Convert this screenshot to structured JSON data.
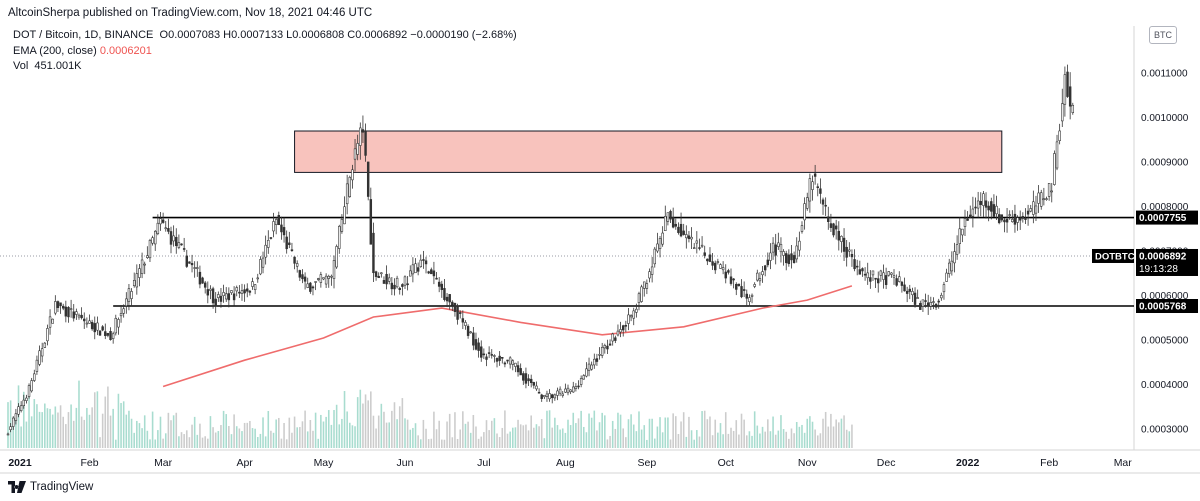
{
  "header": {
    "published": "AltcoinSherpa published on TradingView.com, Nov 18, 2021 04:46 UTC"
  },
  "legend": {
    "symbol": "DOT / Bitcoin, 1D, BINANCE",
    "ohlc": "O0.0007083 H0.0007133 L0.0006808 C0.0006892 −0.0000190 (−2.68%)",
    "ema_label": "EMA (200, close)",
    "ema_value": "0.0006201",
    "vol_label": "Vol",
    "vol_value": "451.001K"
  },
  "scale": {
    "unit": "BTC"
  },
  "price_labels": {
    "resistance": "0.0007755",
    "support": "0.0005768",
    "symbol_tag": "DOTBTC",
    "last_price": "0.0006892",
    "countdown": "19:13:28"
  },
  "footer": {
    "brand": "TradingView"
  },
  "colors": {
    "candle": "#333333",
    "ema": "#ef6c6c",
    "zone_fill": "#f8c3bd",
    "vol_up": "#a8dccf",
    "vol_down": "#cccccc"
  },
  "chart_data": {
    "type": "candlestick",
    "title": "",
    "symbol": "DOT / Bitcoin, 1D, BINANCE",
    "x_ticks": [
      "2021",
      "Feb",
      "Mar",
      "Apr",
      "May",
      "Jun",
      "Jul",
      "Aug",
      "Sep",
      "Oct",
      "Nov",
      "Dec",
      "2022",
      "Feb",
      "Mar"
    ],
    "y_ticks": [
      "0.0003000",
      "0.0004000",
      "0.0005000",
      "0.0006000",
      "0.0007000",
      "0.0008000",
      "0.0009000",
      "0.0010000",
      "0.0011000"
    ],
    "ylim": [
      0.00026,
      0.00117
    ],
    "price_path": [
      {
        "date": "2021-01-01",
        "price": 0.000285
      },
      {
        "date": "2021-01-10",
        "price": 0.00039
      },
      {
        "date": "2021-01-20",
        "price": 0.00058
      },
      {
        "date": "2021-02-01",
        "price": 0.00054
      },
      {
        "date": "2021-02-10",
        "price": 0.00051
      },
      {
        "date": "2021-02-20",
        "price": 0.00064
      },
      {
        "date": "2021-03-01",
        "price": 0.000765
      },
      {
        "date": "2021-03-10",
        "price": 0.00069
      },
      {
        "date": "2021-03-22",
        "price": 0.00059
      },
      {
        "date": "2021-04-05",
        "price": 0.00062
      },
      {
        "date": "2021-04-14",
        "price": 0.00077
      },
      {
        "date": "2021-04-25",
        "price": 0.00062
      },
      {
        "date": "2021-05-05",
        "price": 0.00064
      },
      {
        "date": "2021-05-13",
        "price": 0.0009
      },
      {
        "date": "2021-05-17",
        "price": 0.00098
      },
      {
        "date": "2021-05-21",
        "price": 0.00065
      },
      {
        "date": "2021-06-01",
        "price": 0.00062
      },
      {
        "date": "2021-06-08",
        "price": 0.00068
      },
      {
        "date": "2021-06-20",
        "price": 0.00058
      },
      {
        "date": "2021-07-01",
        "price": 0.00047
      },
      {
        "date": "2021-07-12",
        "price": 0.00045
      },
      {
        "date": "2021-07-25",
        "price": 0.00037
      },
      {
        "date": "2021-08-05",
        "price": 0.00039
      },
      {
        "date": "2021-08-15",
        "price": 0.00047
      },
      {
        "date": "2021-08-28",
        "price": 0.00056
      },
      {
        "date": "2021-09-05",
        "price": 0.00069
      },
      {
        "date": "2021-09-10",
        "price": 0.00078
      },
      {
        "date": "2021-09-18",
        "price": 0.00072
      },
      {
        "date": "2021-10-01",
        "price": 0.00066
      },
      {
        "date": "2021-10-10",
        "price": 0.00059
      },
      {
        "date": "2021-10-20",
        "price": 0.00071
      },
      {
        "date": "2021-10-28",
        "price": 0.00068
      },
      {
        "date": "2021-11-04",
        "price": 0.00087
      },
      {
        "date": "2021-11-10",
        "price": 0.00077
      },
      {
        "date": "2021-11-18",
        "price": 0.000689
      },
      {
        "date": "2021-11-25",
        "price": 0.00064
      },
      {
        "date": "2021-12-05",
        "price": 0.00064
      },
      {
        "date": "2021-12-15",
        "price": 0.00058
      },
      {
        "date": "2021-12-22",
        "price": 0.00059
      },
      {
        "date": "2022-01-01",
        "price": 0.00077
      },
      {
        "date": "2022-01-08",
        "price": 0.00082
      },
      {
        "date": "2022-01-15",
        "price": 0.00077
      },
      {
        "date": "2022-01-25",
        "price": 0.00078
      },
      {
        "date": "2022-02-03",
        "price": 0.00085
      },
      {
        "date": "2022-02-08",
        "price": 0.00109
      },
      {
        "date": "2022-02-10",
        "price": 0.00102
      }
    ],
    "ema200": [
      {
        "date": "2021-03-01",
        "value": 0.000396
      },
      {
        "date": "2021-04-01",
        "value": 0.000455
      },
      {
        "date": "2021-05-01",
        "value": 0.000505
      },
      {
        "date": "2021-05-20",
        "value": 0.000552
      },
      {
        "date": "2021-06-15",
        "value": 0.000572
      },
      {
        "date": "2021-07-15",
        "value": 0.00054
      },
      {
        "date": "2021-08-15",
        "value": 0.000512
      },
      {
        "date": "2021-09-15",
        "value": 0.00053
      },
      {
        "date": "2021-10-15",
        "value": 0.000572
      },
      {
        "date": "2021-11-01",
        "value": 0.00059
      },
      {
        "date": "2021-11-18",
        "value": 0.000622
      }
    ],
    "horizontal_lines": [
      {
        "label": "resistance",
        "price": 0.0007755,
        "from": "2021-02-25",
        "to": "2022-03-01"
      },
      {
        "label": "support",
        "price": 0.0005768,
        "from": "2021-02-10",
        "to": "2022-03-01"
      }
    ],
    "zone": {
      "from": "2021-04-20",
      "to": "2022-01-14",
      "price_low": 0.000877,
      "price_high": 0.00097
    },
    "last_price": 0.0006892
  }
}
